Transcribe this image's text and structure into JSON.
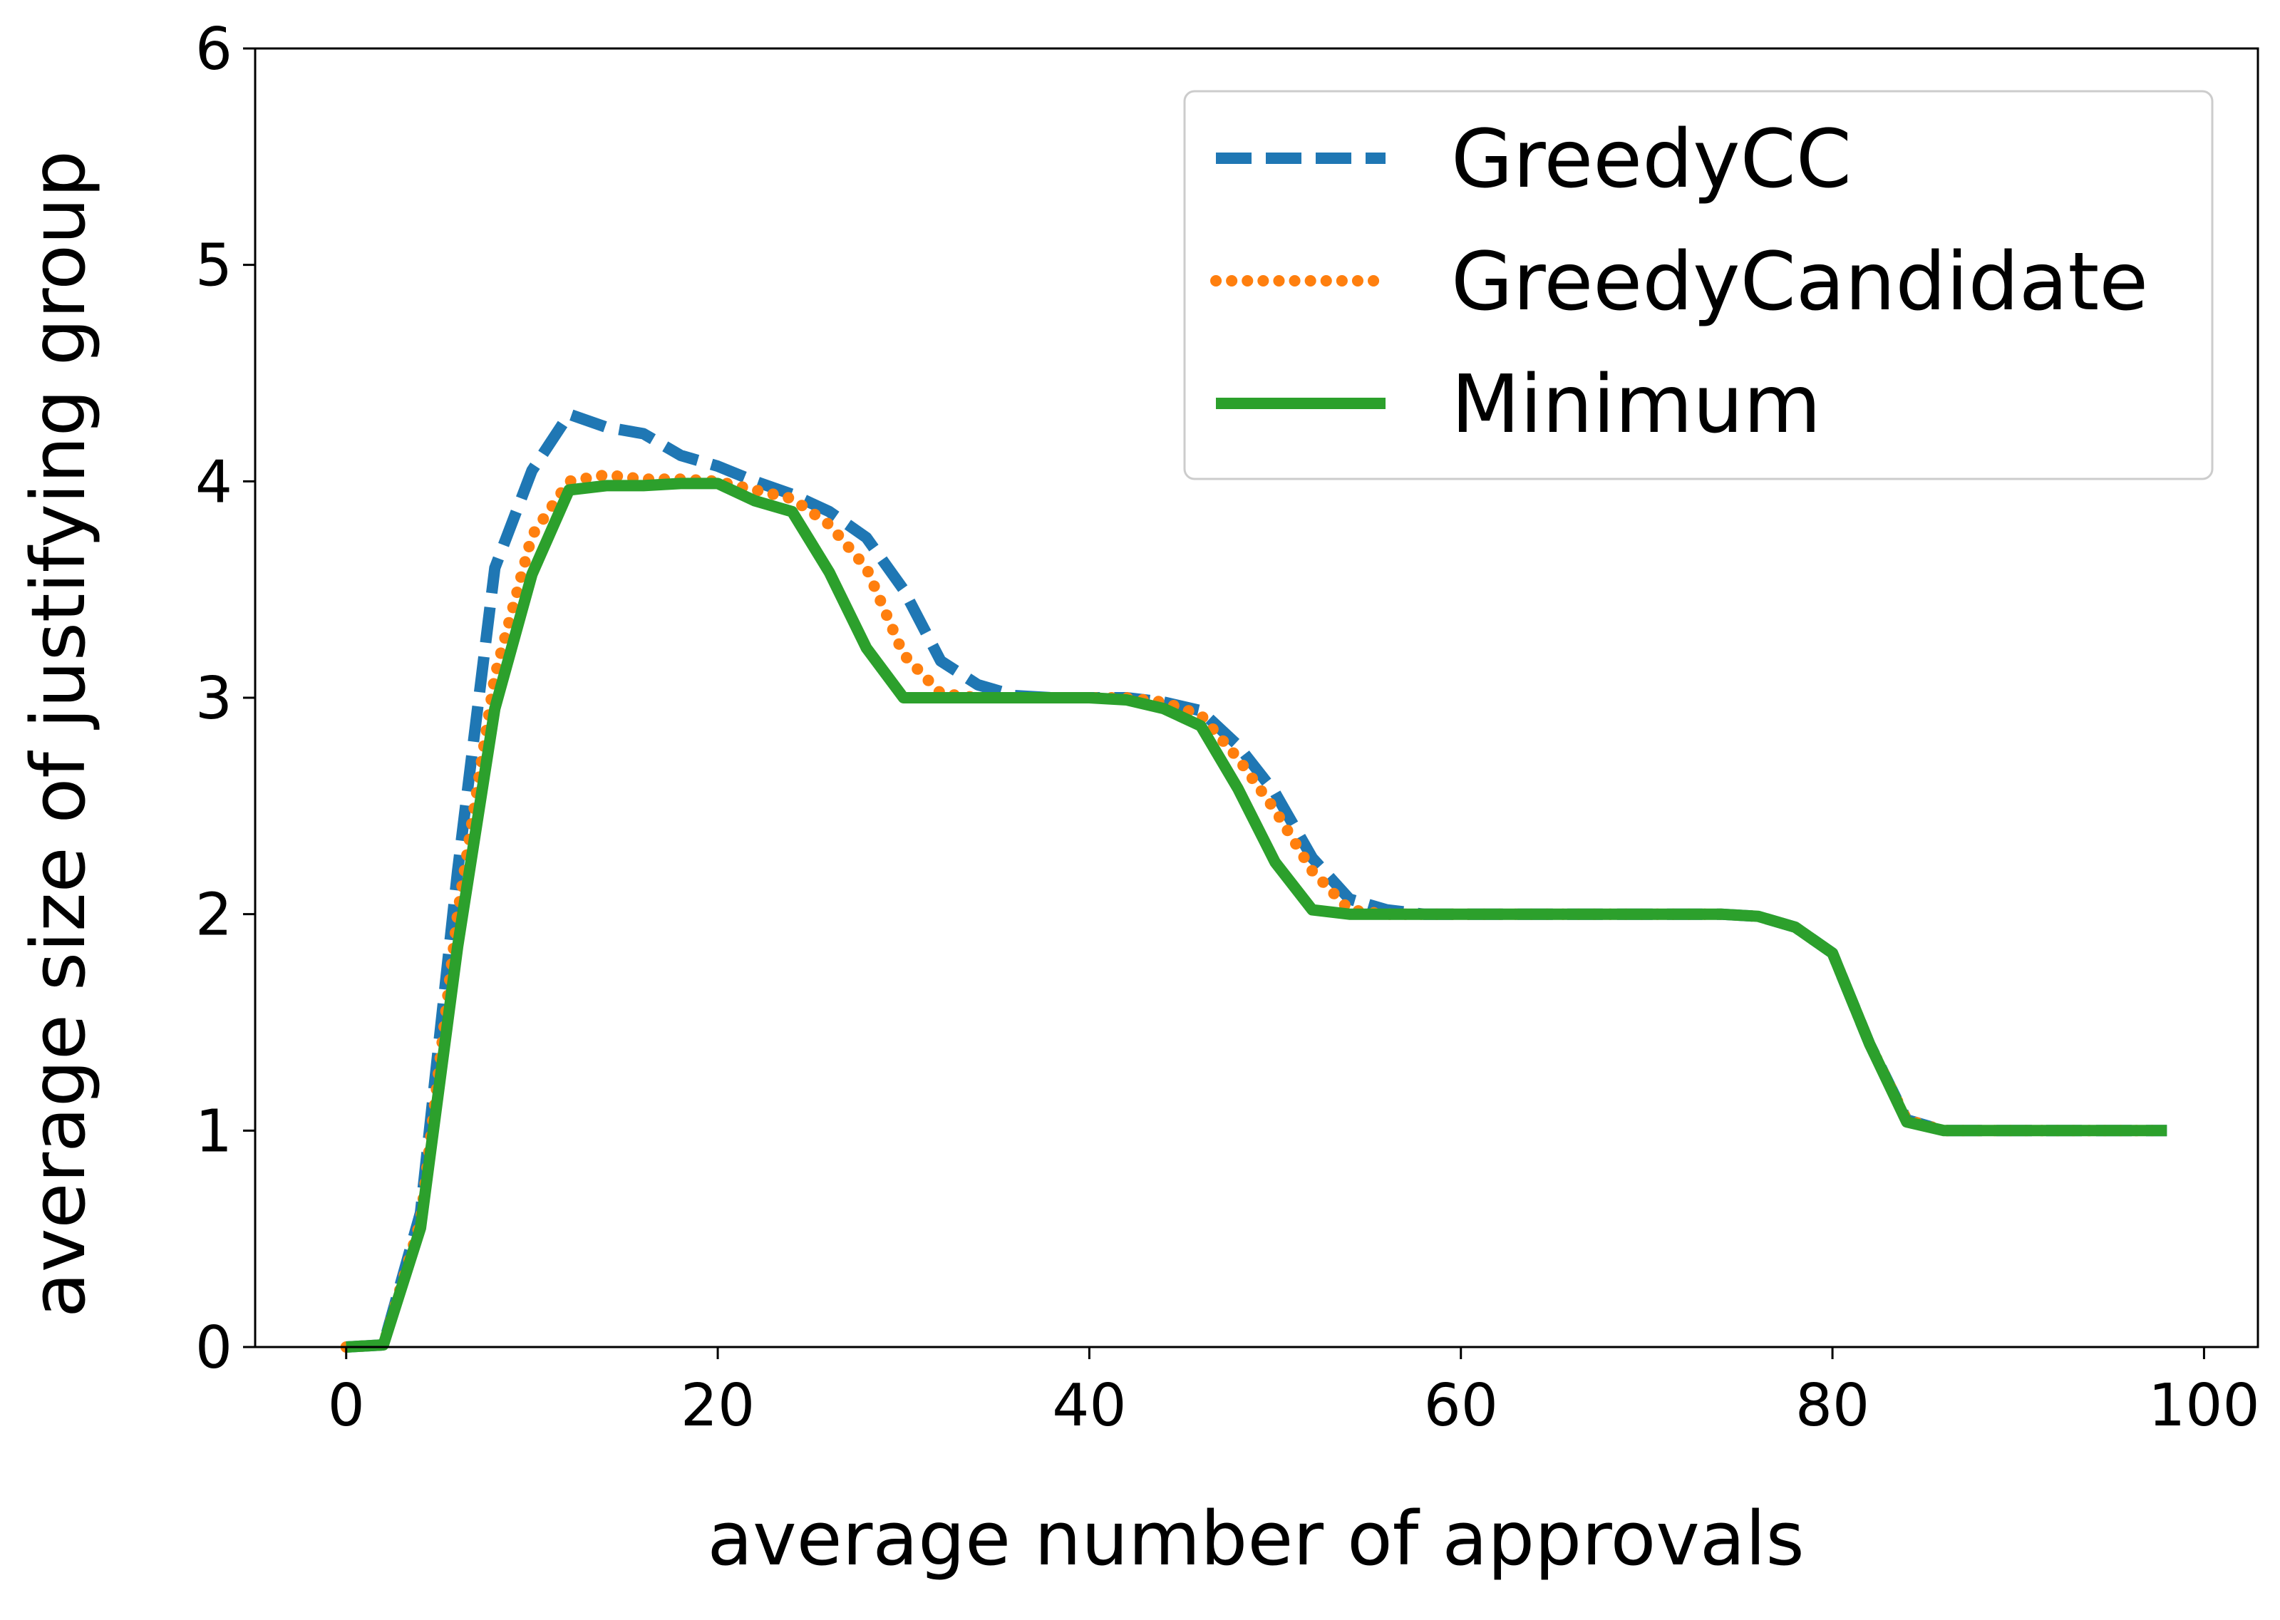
{
  "chart_data": {
    "type": "line",
    "title": "",
    "xlabel": "average number of approvals",
    "ylabel": "average size of justifying group",
    "xlim": [
      -4.9,
      102.9
    ],
    "ylim": [
      0,
      6
    ],
    "xticks": [
      0,
      20,
      40,
      60,
      80,
      100
    ],
    "yticks": [
      0,
      1,
      2,
      3,
      4,
      5,
      6
    ],
    "grid": false,
    "legend_position": "top-right",
    "series": [
      {
        "name": "GreedyCC",
        "color": "#1f77b4",
        "style": "dashed",
        "x": [
          0,
          2,
          4,
          6,
          8,
          10,
          12,
          14,
          16,
          18,
          20,
          22,
          24,
          26,
          28,
          30,
          32,
          34,
          36,
          38,
          40,
          42,
          44,
          46,
          48,
          50,
          52,
          54,
          56,
          58,
          60,
          62,
          64,
          66,
          68,
          70,
          72,
          74,
          76,
          78,
          80,
          82,
          84,
          86,
          88,
          90,
          92,
          94,
          96,
          98
        ],
        "values": [
          0,
          0.01,
          0.62,
          2.2,
          3.6,
          4.05,
          4.31,
          4.25,
          4.22,
          4.12,
          4.07,
          4.0,
          3.94,
          3.86,
          3.74,
          3.5,
          3.17,
          3.06,
          3.01,
          3.0,
          3.0,
          3.0,
          2.98,
          2.94,
          2.78,
          2.56,
          2.26,
          2.07,
          2.02,
          2.0,
          2.0,
          2.0,
          2.0,
          2.0,
          2.0,
          2.0,
          2.0,
          2.0,
          1.99,
          1.94,
          1.82,
          1.4,
          1.05,
          1.0,
          1.0,
          1.0,
          1.0,
          1.0,
          1.0,
          1.0
        ]
      },
      {
        "name": "GreedyCandidate",
        "color": "#ff7f0e",
        "style": "dotted",
        "x": [
          0,
          2,
          4,
          6,
          8,
          10,
          12,
          14,
          16,
          18,
          20,
          22,
          24,
          26,
          28,
          30,
          32,
          34,
          36,
          38,
          40,
          42,
          44,
          46,
          48,
          50,
          52,
          54,
          56,
          58,
          60,
          62,
          64,
          66,
          68,
          70,
          72,
          74,
          76,
          78,
          80,
          82,
          84,
          86,
          88,
          90,
          92,
          94,
          96,
          98
        ],
        "values": [
          0,
          0.01,
          0.58,
          2.0,
          3.1,
          3.75,
          4.0,
          4.03,
          4.01,
          4.01,
          4.0,
          3.96,
          3.92,
          3.8,
          3.6,
          3.2,
          3.02,
          3.0,
          3.0,
          3.0,
          3.0,
          3.0,
          2.98,
          2.92,
          2.72,
          2.48,
          2.2,
          2.02,
          2.0,
          2.0,
          2.0,
          2.0,
          2.0,
          2.0,
          2.0,
          2.0,
          2.0,
          2.0,
          1.99,
          1.94,
          1.82,
          1.4,
          1.05,
          1.0,
          1.0,
          1.0,
          1.0,
          1.0,
          1.0,
          1.0
        ]
      },
      {
        "name": "Minimum",
        "color": "#2ca02c",
        "style": "solid",
        "x": [
          0,
          2,
          4,
          6,
          8,
          10,
          12,
          14,
          16,
          18,
          20,
          22,
          24,
          26,
          28,
          30,
          32,
          34,
          36,
          38,
          40,
          42,
          44,
          46,
          48,
          50,
          52,
          54,
          56,
          58,
          60,
          62,
          64,
          66,
          68,
          70,
          72,
          74,
          76,
          78,
          80,
          82,
          84,
          86,
          88,
          90,
          92,
          94,
          96,
          98
        ],
        "values": [
          0,
          0.01,
          0.55,
          1.85,
          2.95,
          3.57,
          3.96,
          3.98,
          3.98,
          3.99,
          3.99,
          3.91,
          3.86,
          3.58,
          3.23,
          3.0,
          3.0,
          3.0,
          3.0,
          3.0,
          3.0,
          2.99,
          2.95,
          2.87,
          2.58,
          2.24,
          2.02,
          2.0,
          2.0,
          2.0,
          2.0,
          2.0,
          2.0,
          2.0,
          2.0,
          2.0,
          2.0,
          2.0,
          1.99,
          1.94,
          1.82,
          1.4,
          1.04,
          1.0,
          1.0,
          1.0,
          1.0,
          1.0,
          1.0,
          1.0
        ]
      }
    ]
  }
}
